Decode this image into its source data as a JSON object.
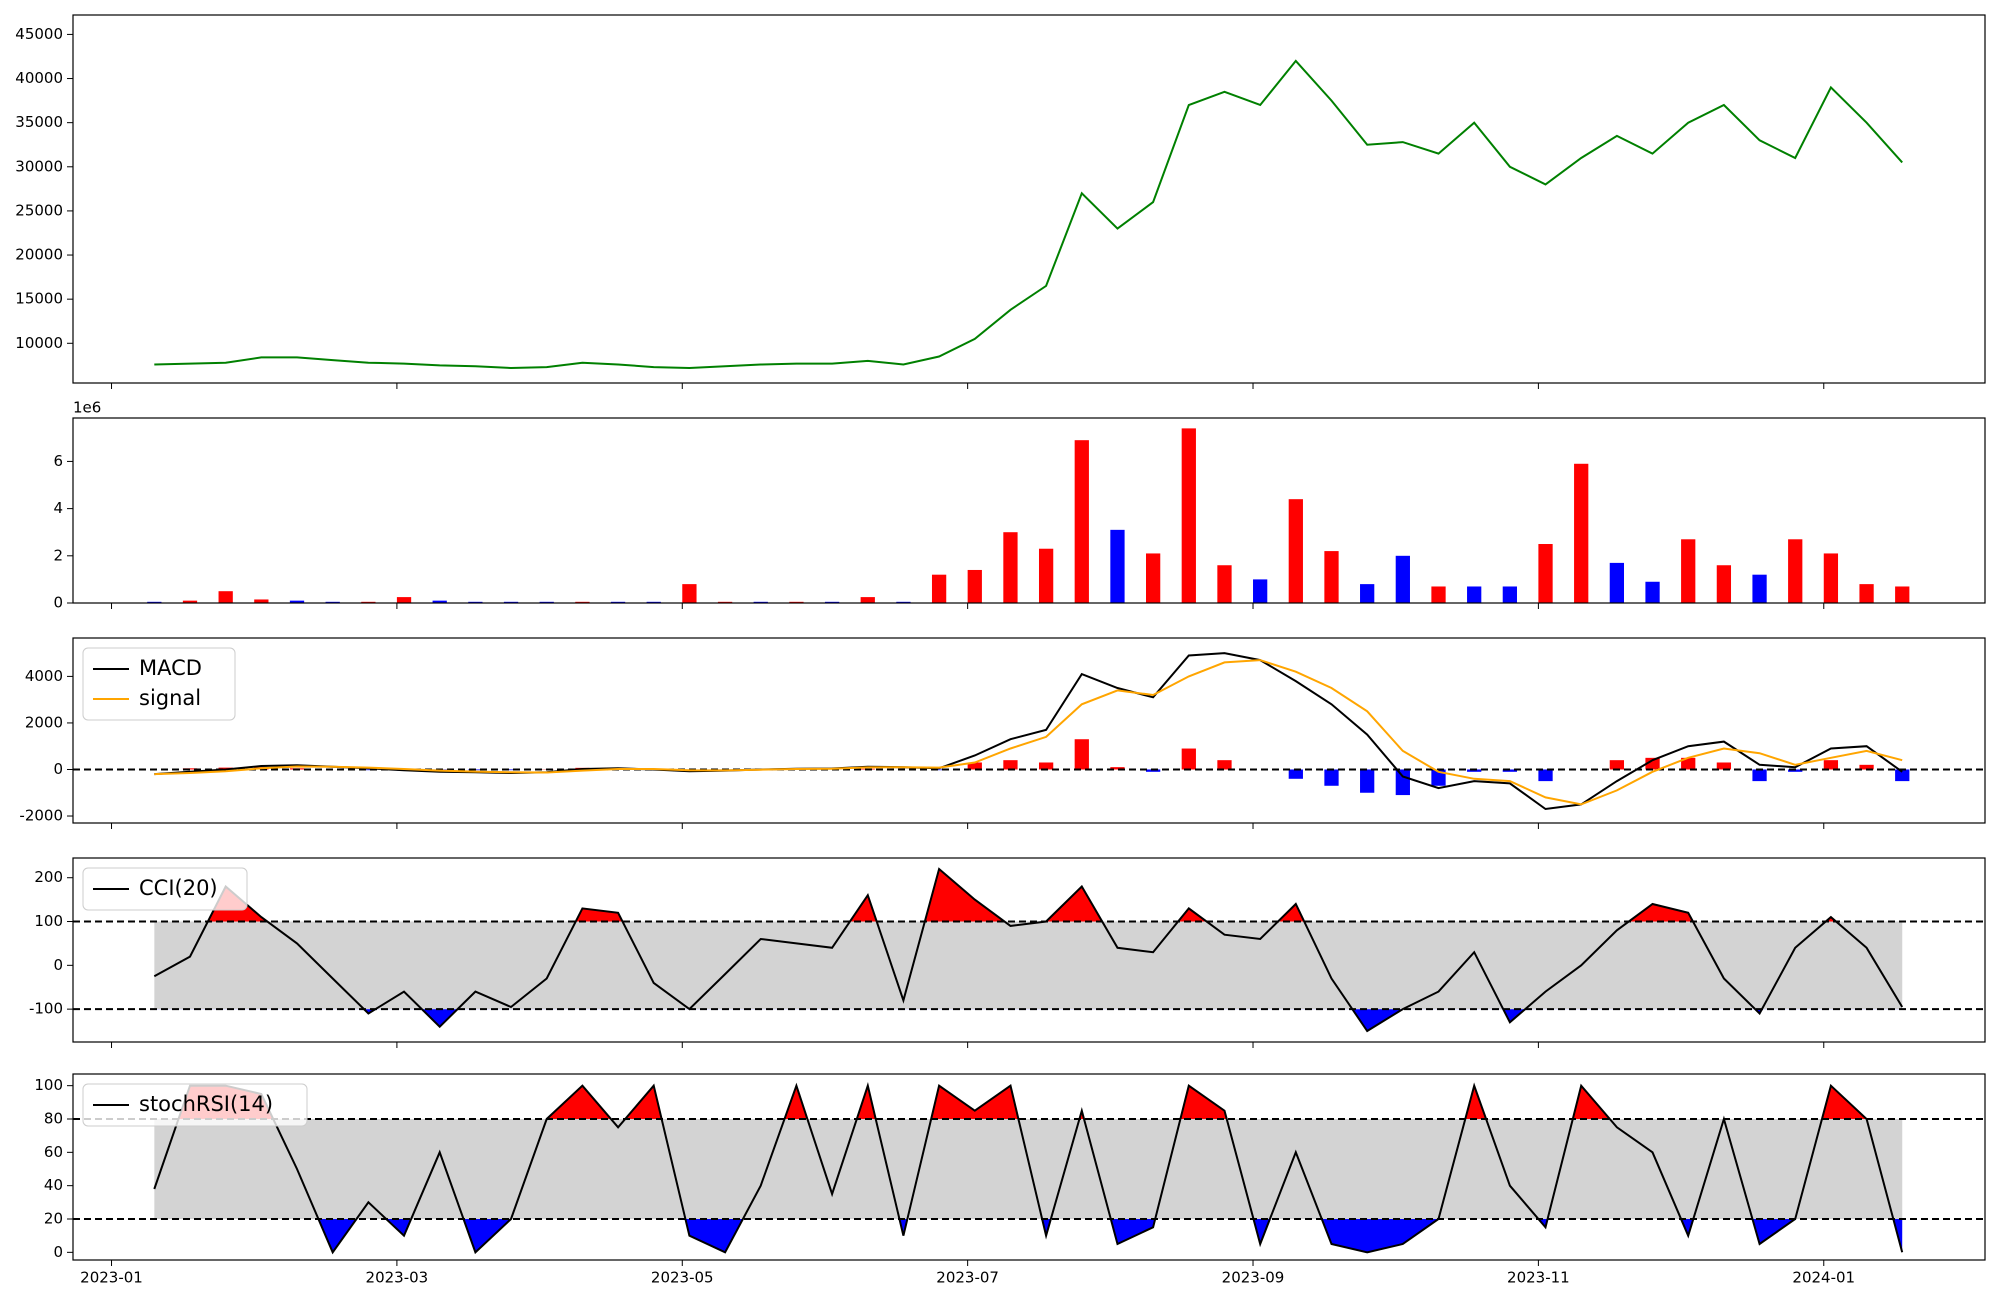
{
  "chart_data": [
    {
      "type": "line",
      "x": [
        0.3,
        0.55,
        0.8,
        1.05,
        1.3,
        1.55,
        1.8,
        2.05,
        2.3,
        2.55,
        2.8,
        3.05,
        3.3,
        3.55,
        3.8,
        4.05,
        4.3,
        4.55,
        4.8,
        5.05,
        5.3,
        5.55,
        5.8,
        6.05,
        6.3,
        6.55,
        6.8,
        7.05,
        7.3,
        7.55,
        7.8,
        8.05,
        8.3,
        8.55,
        8.8,
        9.05,
        9.3,
        9.55,
        9.8,
        10.05,
        10.3,
        10.55,
        10.8,
        11.05,
        11.3,
        11.55,
        11.8,
        12.05,
        12.3,
        12.55
      ],
      "values": [
        7600,
        7700,
        7800,
        8400,
        8400,
        8100,
        7800,
        7700,
        7500,
        7400,
        7200,
        7300,
        7800,
        7600,
        7300,
        7200,
        7400,
        7600,
        7700,
        7700,
        8000,
        7600,
        8500,
        10500,
        13800,
        16500,
        27000,
        23000,
        26000,
        37000,
        38500,
        37000,
        42000,
        37500,
        32500,
        32800,
        31500,
        35000,
        30000,
        28000,
        31000,
        33500,
        31500,
        35000,
        37000,
        33000,
        31000,
        39000,
        35000,
        30500
      ],
      "color": "green",
      "xlim": [
        -0.27,
        13.13
      ],
      "ylim": [
        5500,
        47200
      ],
      "yticks": [
        10000,
        15000,
        20000,
        25000,
        30000,
        35000,
        40000,
        45000
      ]
    },
    {
      "type": "bar",
      "x": [
        0.3,
        0.55,
        0.8,
        1.05,
        1.3,
        1.55,
        1.8,
        2.05,
        2.3,
        2.55,
        2.8,
        3.05,
        3.3,
        3.55,
        3.8,
        4.05,
        4.3,
        4.55,
        4.8,
        5.05,
        5.3,
        5.55,
        5.8,
        6.05,
        6.3,
        6.55,
        6.8,
        7.05,
        7.3,
        7.55,
        7.8,
        8.05,
        8.3,
        8.55,
        8.8,
        9.05,
        9.3,
        9.55,
        9.8,
        10.05,
        10.3,
        10.55,
        10.8,
        11.05,
        11.3,
        11.55,
        11.8,
        12.05,
        12.3,
        12.55
      ],
      "values": [
        50000,
        100000,
        500000,
        150000,
        100000,
        50000,
        50000,
        250000,
        100000,
        50000,
        50000,
        50000,
        50000,
        50000,
        50000,
        800000,
        50000,
        50000,
        50000,
        50000,
        250000,
        50000,
        1200000,
        1400000,
        3000000,
        2300000,
        6900000,
        3100000,
        2100000,
        7400000,
        1600000,
        1000000,
        4400000,
        2200000,
        800000,
        2000000,
        700000,
        700000,
        700000,
        2500000,
        5900000,
        1700000,
        900000,
        2700000,
        1600000,
        1200000,
        2700000,
        2100000,
        800000,
        700000
      ],
      "colors": [
        "blue",
        "red",
        "red",
        "red",
        "blue",
        "blue",
        "red",
        "red",
        "blue",
        "blue",
        "blue",
        "blue",
        "red",
        "blue",
        "blue",
        "red",
        "red",
        "blue",
        "red",
        "blue",
        "red",
        "blue",
        "red",
        "red",
        "red",
        "red",
        "red",
        "blue",
        "red",
        "red",
        "red",
        "blue",
        "red",
        "red",
        "blue",
        "blue",
        "red",
        "blue",
        "blue",
        "red",
        "red",
        "blue",
        "blue",
        "red",
        "red",
        "blue",
        "red",
        "red",
        "red",
        "red"
      ],
      "xlim": [
        -0.27,
        13.13
      ],
      "ylim": [
        0,
        7840000
      ],
      "yticks": [
        0,
        {
          "value": 2000000,
          "label": "2"
        },
        {
          "value": 4000000,
          "label": "4"
        },
        {
          "value": 6000000,
          "label": "6"
        }
      ],
      "offset_label": "1e6"
    },
    {
      "type": "macd",
      "x": [
        0.3,
        0.55,
        0.8,
        1.05,
        1.3,
        1.55,
        1.8,
        2.05,
        2.3,
        2.55,
        2.8,
        3.05,
        3.3,
        3.55,
        3.8,
        4.05,
        4.3,
        4.55,
        4.8,
        5.05,
        5.3,
        5.55,
        5.8,
        6.05,
        6.3,
        6.55,
        6.8,
        7.05,
        7.3,
        7.55,
        7.8,
        8.05,
        8.3,
        8.55,
        8.8,
        9.05,
        9.3,
        9.55,
        9.8,
        10.05,
        10.3,
        10.55,
        10.8,
        11.05,
        11.3,
        11.55,
        11.8,
        12.05,
        12.3,
        12.55
      ],
      "series": [
        {
          "name": "MACD",
          "color": "black",
          "values": [
            -200,
            -100,
            0,
            150,
            180,
            120,
            50,
            -30,
            -100,
            -120,
            -150,
            -120,
            20,
            50,
            0,
            -80,
            -50,
            0,
            30,
            40,
            120,
            100,
            50,
            600,
            1300,
            1700,
            4100,
            3500,
            3100,
            4900,
            5000,
            4700,
            3800,
            2800,
            1500,
            -300,
            -800,
            -500,
            -600,
            -1700,
            -1500,
            -500,
            400,
            1000,
            1200,
            200,
            100,
            900,
            1000,
            -100
          ]
        },
        {
          "name": "signal",
          "color": "orange",
          "values": [
            -200,
            -150,
            -80,
            50,
            130,
            120,
            80,
            20,
            -50,
            -90,
            -120,
            -130,
            -50,
            20,
            20,
            -30,
            -40,
            -10,
            20,
            30,
            90,
            100,
            80,
            300,
            900,
            1400,
            2800,
            3400,
            3200,
            4000,
            4600,
            4700,
            4200,
            3500,
            2500,
            800,
            -100,
            -400,
            -500,
            -1200,
            -1500,
            -900,
            -100,
            500,
            900,
            700,
            200,
            500,
            800,
            400
          ]
        }
      ],
      "histogram": {
        "values": [
          0,
          50,
          80,
          100,
          50,
          0,
          -30,
          -50,
          -50,
          -30,
          -30,
          10,
          70,
          30,
          -20,
          -50,
          -10,
          10,
          10,
          10,
          30,
          0,
          -30,
          300,
          400,
          300,
          1300,
          100,
          -100,
          900,
          400,
          0,
          -400,
          -700,
          -1000,
          -1100,
          -700,
          -100,
          -100,
          -500,
          0,
          400,
          500,
          500,
          300,
          -500,
          -100,
          400,
          200,
          -500
        ],
        "positive_color": "red",
        "negative_color": "blue"
      },
      "hlines": [
        0
      ],
      "xlim": [
        -0.27,
        13.13
      ],
      "ylim": [
        -2300,
        5650
      ],
      "yticks": [
        -2000,
        0,
        2000,
        4000
      ]
    },
    {
      "type": "oscillator",
      "x": [
        0.3,
        0.55,
        0.8,
        1.05,
        1.3,
        1.55,
        1.8,
        2.05,
        2.3,
        2.55,
        2.8,
        3.05,
        3.3,
        3.55,
        3.8,
        4.05,
        4.3,
        4.55,
        4.8,
        5.05,
        5.3,
        5.55,
        5.8,
        6.05,
        6.3,
        6.55,
        6.8,
        7.05,
        7.3,
        7.55,
        7.8,
        8.05,
        8.3,
        8.55,
        8.8,
        9.05,
        9.3,
        9.55,
        9.8,
        10.05,
        10.3,
        10.55,
        10.8,
        11.05,
        11.3,
        11.55,
        11.8,
        12.05,
        12.3,
        12.55
      ],
      "series": [
        {
          "name": "CCI(20)",
          "color": "black",
          "values": [
            -25,
            20,
            180,
            110,
            50,
            -30,
            -110,
            -60,
            -140,
            -60,
            -95,
            -30,
            130,
            120,
            -40,
            -100,
            -20,
            60,
            50,
            40,
            160,
            -80,
            220,
            150,
            90,
            100,
            180,
            40,
            30,
            130,
            70,
            60,
            140,
            -30,
            -150,
            -100,
            -60,
            30,
            -130,
            -60,
            0,
            80,
            140,
            120,
            -30,
            -110,
            40,
            110,
            40,
            -95
          ]
        }
      ],
      "hlines": [
        -100,
        100
      ],
      "band_color": "lightgray",
      "above_color": "red",
      "below_color": "blue",
      "xlim": [
        -0.27,
        13.13
      ],
      "ylim": [
        -175,
        245
      ],
      "yticks": [
        -100,
        0,
        100,
        200
      ]
    },
    {
      "type": "oscillator",
      "x": [
        0.3,
        0.55,
        0.8,
        1.05,
        1.3,
        1.55,
        1.8,
        2.05,
        2.3,
        2.55,
        2.8,
        3.05,
        3.3,
        3.55,
        3.8,
        4.05,
        4.3,
        4.55,
        4.8,
        5.05,
        5.3,
        5.55,
        5.8,
        6.05,
        6.3,
        6.55,
        6.8,
        7.05,
        7.3,
        7.55,
        7.8,
        8.05,
        8.3,
        8.55,
        8.8,
        9.05,
        9.3,
        9.55,
        9.8,
        10.05,
        10.3,
        10.55,
        10.8,
        11.05,
        11.3,
        11.55,
        11.8,
        12.05,
        12.3,
        12.55
      ],
      "series": [
        {
          "name": "stochRSI(14)",
          "color": "black",
          "values": [
            38,
            100,
            100,
            95,
            50,
            0,
            30,
            10,
            60,
            0,
            20,
            80,
            100,
            75,
            100,
            10,
            0,
            40,
            100,
            35,
            100,
            10,
            100,
            85,
            100,
            10,
            85,
            5,
            15,
            100,
            85,
            5,
            60,
            5,
            0,
            5,
            20,
            100,
            40,
            15,
            100,
            75,
            60,
            10,
            80,
            5,
            20,
            100,
            80,
            0
          ]
        }
      ],
      "hlines": [
        20,
        80
      ],
      "band_color": "lightgray",
      "above_color": "red",
      "below_color": "blue",
      "xlim": [
        -0.27,
        13.13
      ],
      "ylim": [
        -4.6,
        107
      ],
      "yticks": [
        0,
        20,
        40,
        60,
        80,
        100
      ],
      "xticks": [
        {
          "value": 0,
          "label": "2023-01"
        },
        {
          "value": 2,
          "label": "2023-03"
        },
        {
          "value": 4,
          "label": "2023-05"
        },
        {
          "value": 6,
          "label": "2023-07"
        },
        {
          "value": 8,
          "label": "2023-09"
        },
        {
          "value": 10,
          "label": "2023-11"
        },
        {
          "value": 12,
          "label": "2024-01"
        }
      ]
    }
  ]
}
